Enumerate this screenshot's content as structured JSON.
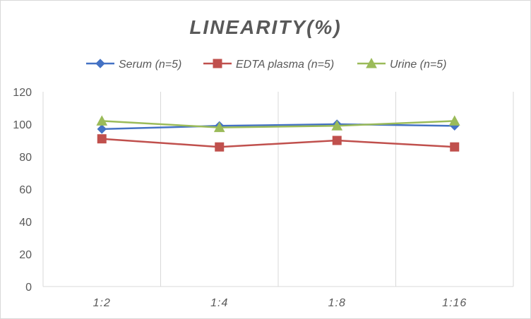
{
  "chart_data": {
    "type": "line",
    "title": "LINEARITY(%)",
    "xlabel": "",
    "ylabel": "",
    "categories": [
      "1:2",
      "1:4",
      "1:8",
      "1:16"
    ],
    "ylim": [
      0,
      120
    ],
    "yticks": [
      0,
      20,
      40,
      60,
      80,
      100,
      120
    ],
    "grid": "vertical",
    "legend": "top",
    "series": [
      {
        "name": "Serum (n=5)",
        "values": [
          97,
          99,
          100,
          99
        ],
        "color": "#4472c4",
        "marker": "diamond"
      },
      {
        "name": "EDTA plasma (n=5)",
        "values": [
          91,
          86,
          90,
          86
        ],
        "color": "#c0504d",
        "marker": "square"
      },
      {
        "name": "Urine (n=5)",
        "values": [
          102,
          98,
          99,
          102
        ],
        "color": "#9bbb59",
        "marker": "triangle"
      }
    ]
  }
}
